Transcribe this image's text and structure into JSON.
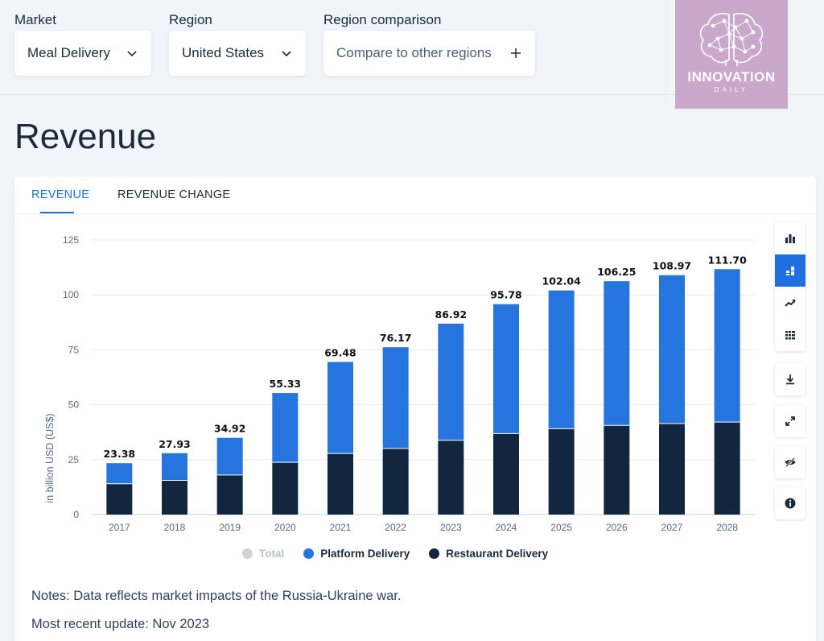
{
  "filters": {
    "market": {
      "label": "Market",
      "value": "Meal Delivery"
    },
    "region": {
      "label": "Region",
      "value": "United States"
    },
    "comparison": {
      "label": "Region comparison",
      "value": "Compare to other regions"
    }
  },
  "logo": {
    "title": "INNOVATION",
    "subtitle": "DAILY"
  },
  "page_title": "Revenue",
  "tabs": [
    {
      "label": "REVENUE",
      "active": true
    },
    {
      "label": "REVENUE CHANGE",
      "active": false
    }
  ],
  "toolbar": {
    "buttons": [
      "bar-chart-icon",
      "stacked-bar-icon",
      "trend-icon",
      "table-icon",
      "download-icon",
      "fullscreen-icon",
      "hide-icon",
      "info-icon"
    ],
    "active": "stacked-bar-icon"
  },
  "chart_data": {
    "type": "bar",
    "stacked": true,
    "categories": [
      "2017",
      "2018",
      "2019",
      "2020",
      "2021",
      "2022",
      "2023",
      "2024",
      "2025",
      "2026",
      "2027",
      "2028"
    ],
    "series": [
      {
        "name": "Restaurant Delivery",
        "color": "#12263f",
        "values": [
          14.0,
          15.6,
          18.0,
          23.8,
          27.8,
          30.1,
          33.8,
          36.9,
          39.1,
          40.6,
          41.4,
          42.1
        ]
      },
      {
        "name": "Platform Delivery",
        "color": "#2674de",
        "values": [
          9.38,
          12.33,
          16.92,
          31.53,
          41.68,
          46.07,
          53.12,
          58.88,
          62.94,
          65.65,
          67.57,
          69.6
        ]
      }
    ],
    "totals": [
      23.38,
      27.93,
      34.92,
      55.33,
      69.48,
      76.17,
      86.92,
      95.78,
      102.04,
      106.25,
      108.97,
      111.7
    ],
    "total_labels": [
      "23.38",
      "27.93",
      "34.92",
      "55.33",
      "69.48",
      "76.17",
      "86.92",
      "95.78",
      "102.04",
      "106.25",
      "108.97",
      "111.70"
    ],
    "legend": [
      {
        "name": "Total",
        "color": "#cfd4da",
        "muted": true
      },
      {
        "name": "Platform Delivery",
        "color": "#2674de",
        "muted": false
      },
      {
        "name": "Restaurant Delivery",
        "color": "#12263f",
        "muted": false
      }
    ],
    "yticks": [
      "0",
      "25",
      "50",
      "75",
      "100",
      "125"
    ],
    "ylim": [
      0,
      125
    ],
    "ylabel": "in billion USD (US$)",
    "xlabel": "",
    "grid": true
  },
  "notes": {
    "note": "Notes: Data reflects market impacts of the Russia-Ukraine war.",
    "update": "Most recent update: Nov 2023"
  }
}
